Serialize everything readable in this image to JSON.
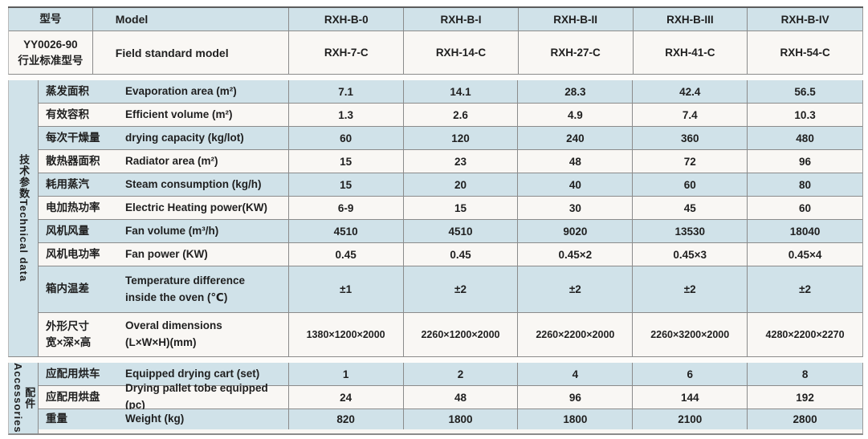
{
  "header": {
    "model_label_zh": "型号",
    "model_label_en": "Model",
    "standard_label_zh": "YY0026-90\n行业标准型号",
    "standard_label_en": "Field standard model",
    "models": [
      "RXH-B-0",
      "RXH-B-I",
      "RXH-B-II",
      "RXH-B-III",
      "RXH-B-IV"
    ],
    "standard_models": [
      "RXH-7-C",
      "RXH-14-C",
      "RXH-27-C",
      "RXH-41-C",
      "RXH-54-C"
    ]
  },
  "sections": [
    {
      "id": "technical-data",
      "label_zh": "技术参数",
      "label_en": "Technical data",
      "rows": [
        {
          "zh": "蒸发面积",
          "en": "Evaporation area (m²)",
          "values": [
            "7.1",
            "14.1",
            "28.3",
            "42.4",
            "56.5"
          ],
          "size": "std"
        },
        {
          "zh": "有效容积",
          "en": "Efficient volume (m²)",
          "values": [
            "1.3",
            "2.6",
            "4.9",
            "7.4",
            "10.3"
          ],
          "size": "std"
        },
        {
          "zh": "每次干燥量",
          "en": "drying capacity (kg/lot)",
          "values": [
            "60",
            "120",
            "240",
            "360",
            "480"
          ],
          "size": "std"
        },
        {
          "zh": "散热器面积",
          "en": "Radiator area (m²)",
          "values": [
            "15",
            "23",
            "48",
            "72",
            "96"
          ],
          "size": "std"
        },
        {
          "zh": "耗用蒸汽",
          "en": "Steam consumption (kg/h)",
          "values": [
            "15",
            "20",
            "40",
            "60",
            "80"
          ],
          "size": "std"
        },
        {
          "zh": "电加热功率",
          "en": "Electric Heating power(KW)",
          "values": [
            "6-9",
            "15",
            "30",
            "45",
            "60"
          ],
          "size": "std"
        },
        {
          "zh": "风机风量",
          "en": "Fan volume (m³/h)",
          "values": [
            "4510",
            "4510",
            "9020",
            "13530",
            "18040"
          ],
          "size": "std"
        },
        {
          "zh": "风机电功率",
          "en": "Fan power (KW)",
          "values": [
            "0.45",
            "0.45",
            "0.45×2",
            "0.45×3",
            "0.45×4"
          ],
          "size": "std"
        },
        {
          "zh": "箱内温差",
          "en": "Temperature difference\ninside the oven (℃)",
          "values": [
            "±1",
            "±2",
            "±2",
            "±2",
            "±2"
          ],
          "size": "tall"
        },
        {
          "zh": "外形尺寸\n宽×深×高",
          "en": "Overal dimensions\n(L×W×H)(mm)",
          "values": [
            "1380×1200×2000",
            "2260×1200×2000",
            "2260×2200×2000",
            "2260×3200×2000",
            "4280×2200×2270"
          ],
          "size": "dims"
        }
      ]
    },
    {
      "id": "accessories",
      "label_zh": "配件",
      "label_en": "Accessories",
      "rows": [
        {
          "zh": "应配用烘车",
          "en": "Equipped drying cart (set)",
          "values": [
            "1",
            "2",
            "4",
            "6",
            "8"
          ],
          "size": "std"
        },
        {
          "zh": "应配用烘盘",
          "en": "Drying pallet tobe equipped (pc)",
          "values": [
            "24",
            "48",
            "96",
            "144",
            "192"
          ],
          "size": "std"
        },
        {
          "zh": "重量",
          "en": "Weight (kg)",
          "values": [
            "820",
            "1800",
            "1800",
            "2100",
            "2800"
          ],
          "size": "short"
        }
      ]
    }
  ],
  "colors": {
    "row_blue": "#d0e2e9",
    "row_white": "#f9f7f4",
    "grid_line": "#8b8b8b",
    "top_border": "#5c5c5c",
    "text": "#1f1f1f"
  }
}
